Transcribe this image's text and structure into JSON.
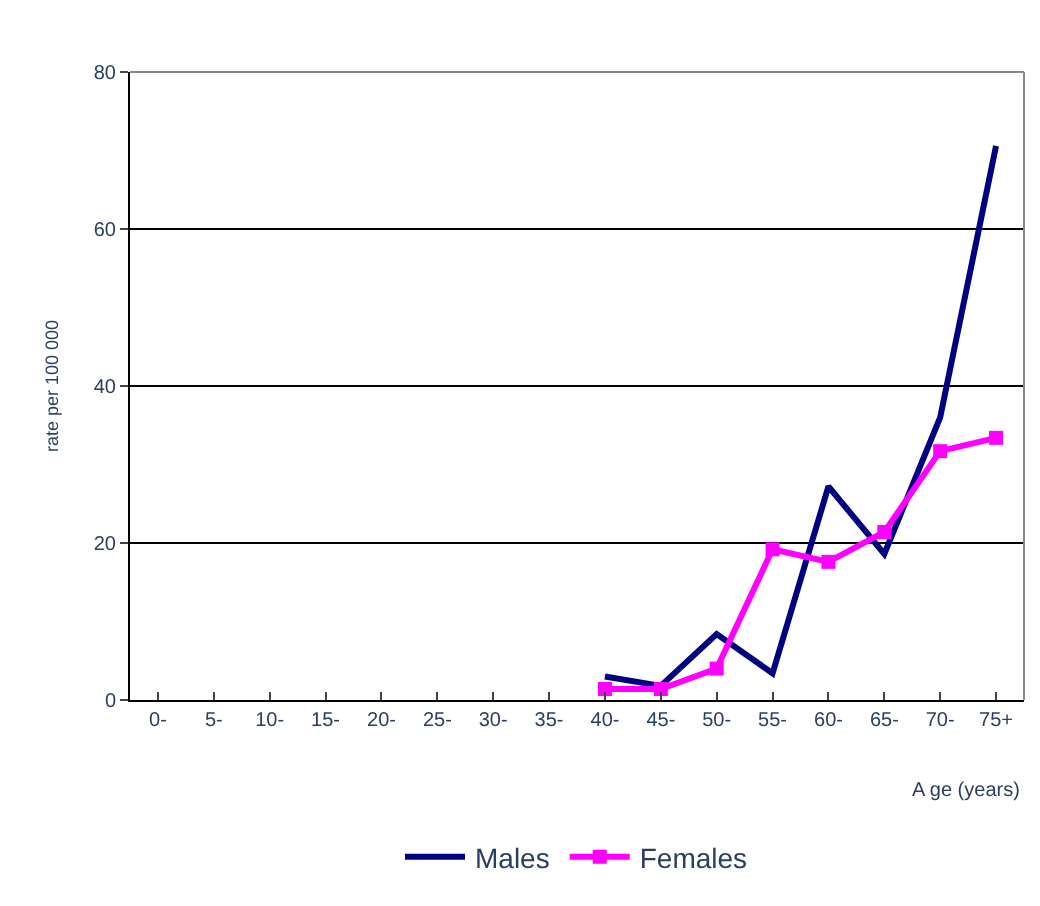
{
  "chart_data": {
    "type": "line",
    "ylabel": "rate per 100 000",
    "xlabel": "A ge (years)",
    "categories": [
      "0-",
      "5-",
      "10-",
      "15-",
      "20-",
      "25-",
      "30-",
      "35-",
      "40-",
      "45-",
      "50-",
      "55-",
      "60-",
      "65-",
      "70-",
      "75+"
    ],
    "series": [
      {
        "name": "Males",
        "color": "#000080",
        "marker": "none",
        "values": [
          null,
          null,
          null,
          null,
          null,
          null,
          null,
          null,
          3.0,
          1.8,
          8.4,
          3.4,
          27.2,
          18.6,
          36,
          70.6
        ]
      },
      {
        "name": "Females",
        "color": "#ff00ff",
        "marker": "square",
        "values": [
          null,
          null,
          null,
          null,
          null,
          null,
          null,
          null,
          1.4,
          1.4,
          4.0,
          19.2,
          17.6,
          21.4,
          31.7,
          33.4
        ]
      }
    ],
    "ylim": [
      0,
      80
    ],
    "yticks": [
      0,
      20,
      40,
      60,
      80
    ],
    "grid": "y",
    "legend": "bottom",
    "line_style": "solid"
  }
}
